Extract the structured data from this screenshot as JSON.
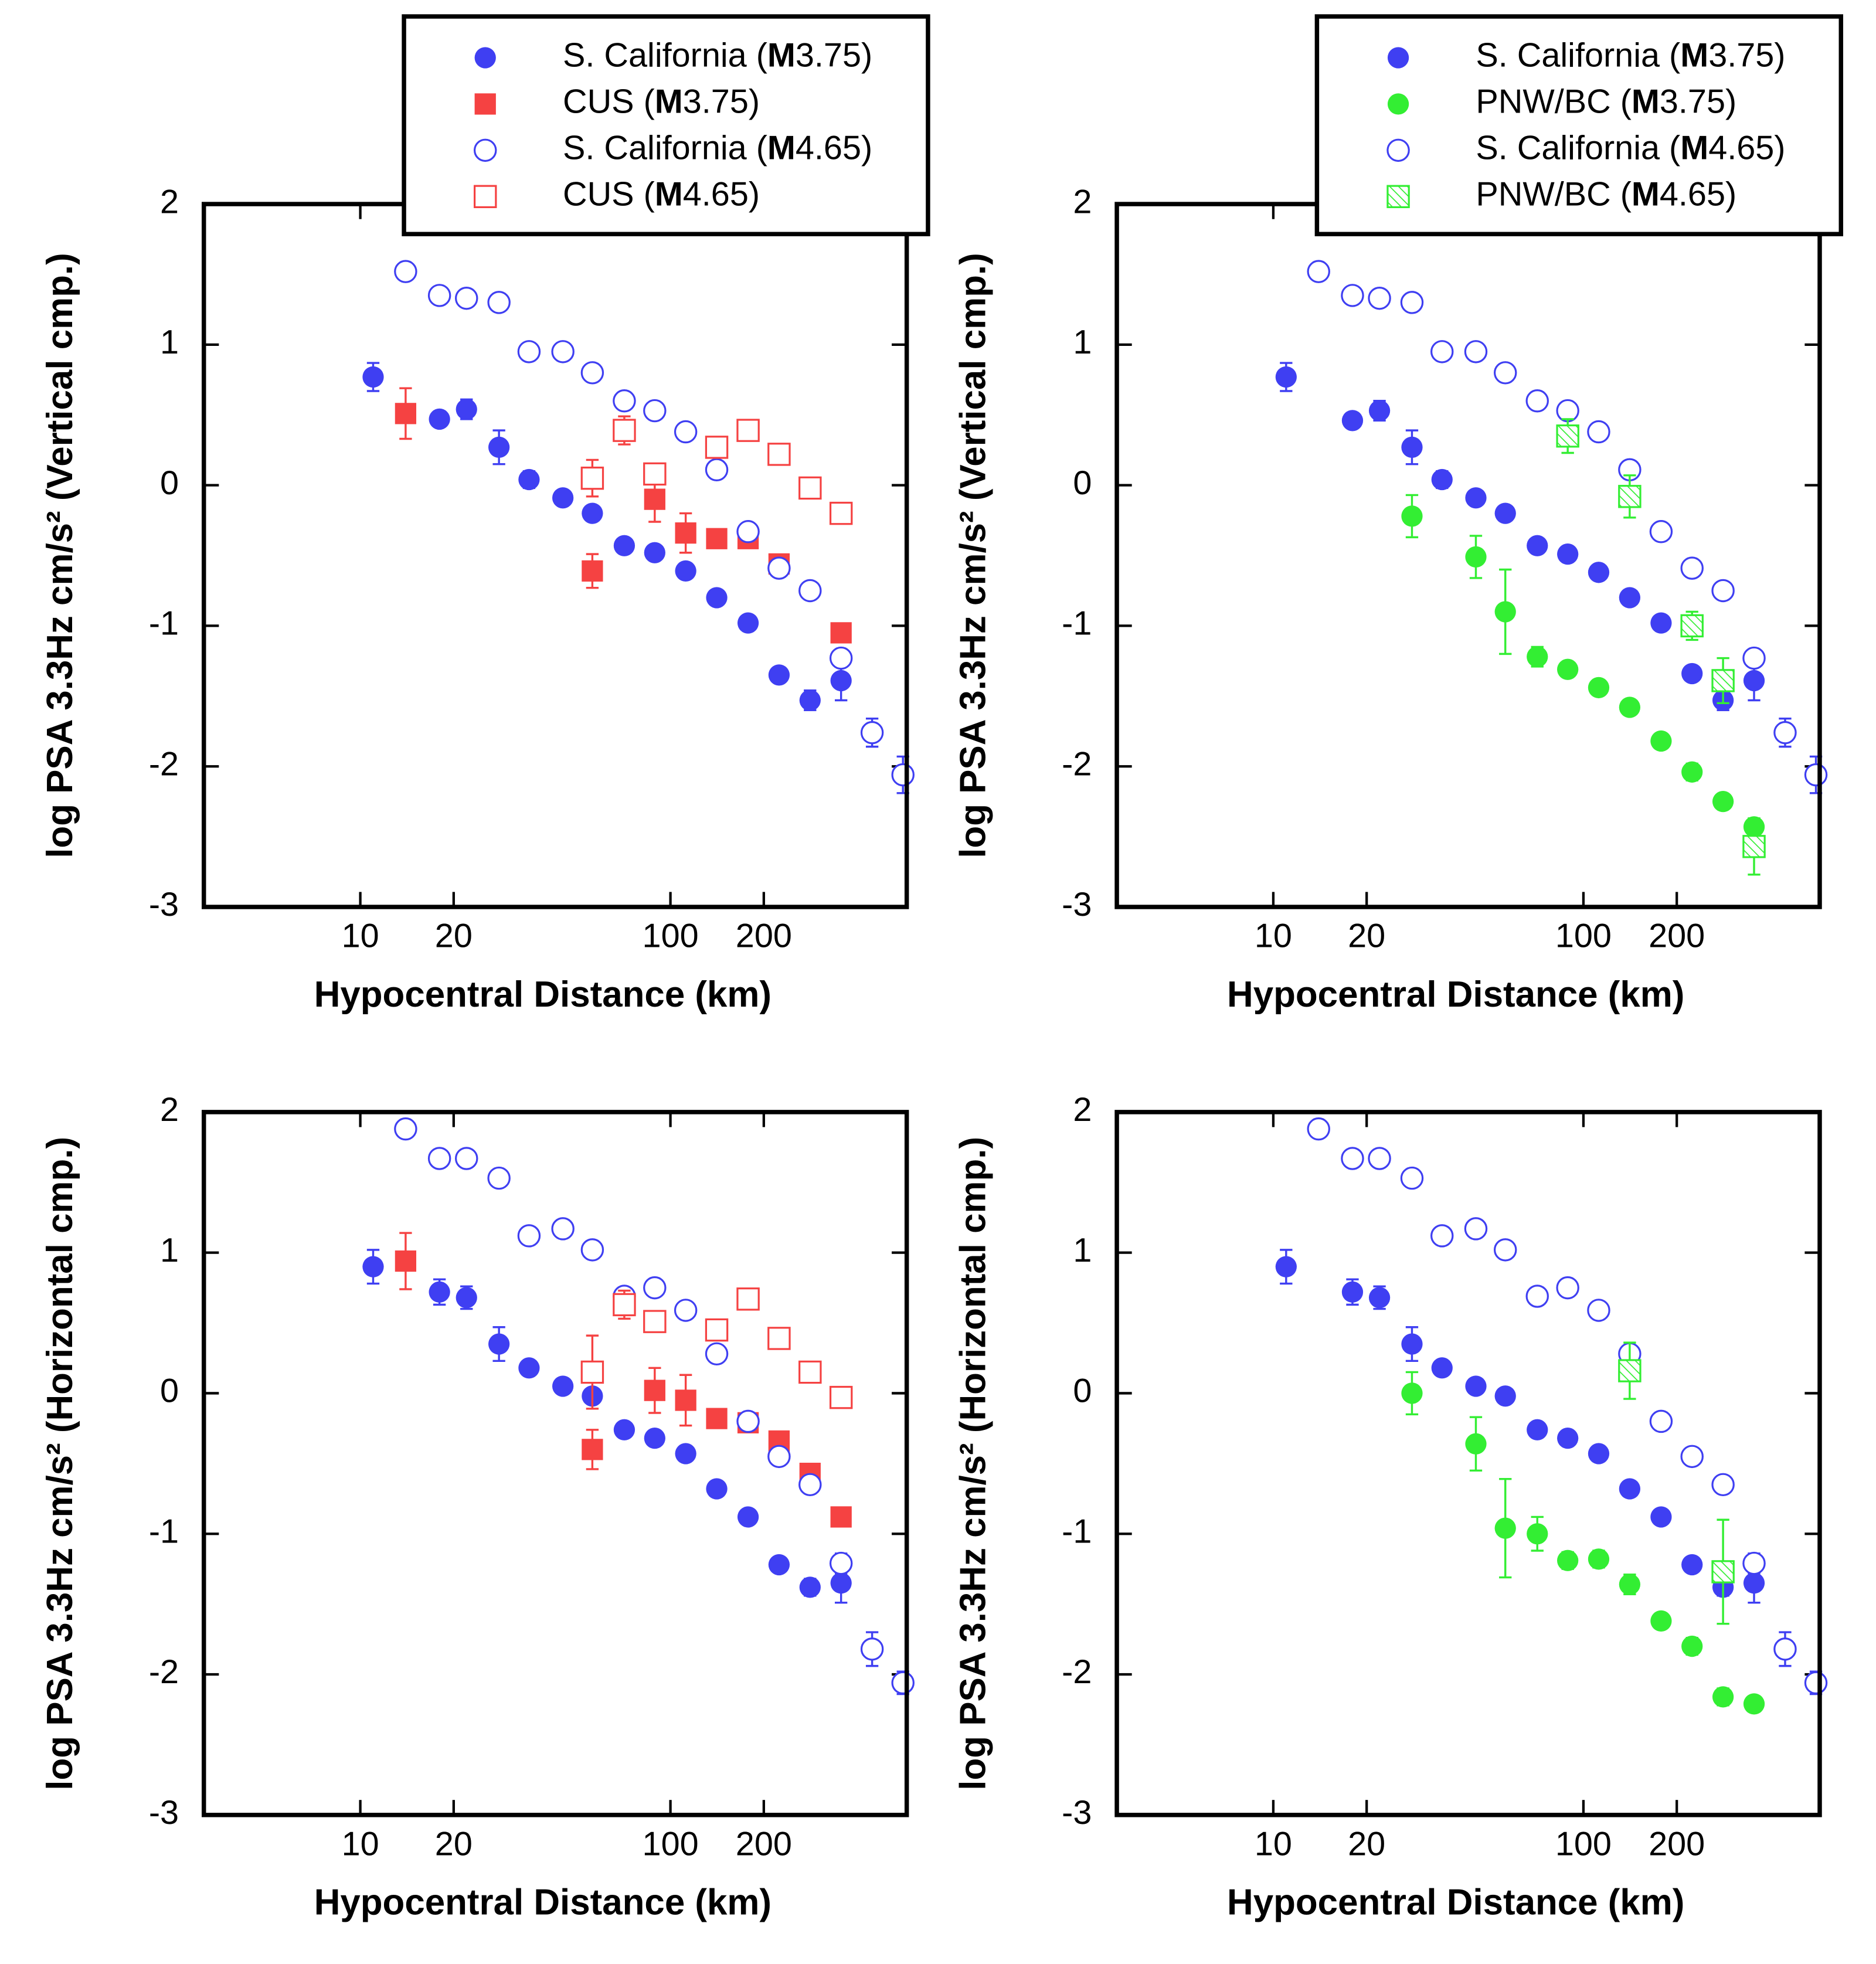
{
  "chart_data": [
    {
      "type": "scatter",
      "xscale": "log",
      "xlabel": "Hypocentral Distance (km)",
      "ylabel": "log PSA 3.3Hz cm/s² (Vertical cmp.)",
      "xlim": [
        3.13,
        578
      ],
      "ylim": [
        -3,
        2
      ],
      "xticks": [
        10,
        20,
        100,
        200
      ],
      "yticks": [
        -3,
        -2,
        -1,
        0,
        1,
        2
      ],
      "legend": "upper right",
      "series": [
        {
          "name": "S. California (M3.75)",
          "color": "#3f3ff2",
          "marker": "circle",
          "fill": "filled",
          "x": [
            11,
            18,
            22,
            28,
            35,
            45,
            56,
            71,
            89,
            112,
            141,
            178,
            224,
            282,
            355
          ],
          "values": [
            0.77,
            0.47,
            0.54,
            0.27,
            0.04,
            -0.09,
            -0.2,
            -0.43,
            -0.48,
            -0.61,
            -0.8,
            -0.98,
            -1.35,
            -1.53,
            -1.39
          ],
          "errors": [
            0.1,
            0.05,
            0.07,
            0.12,
            0.06,
            0.03,
            0.03,
            0.03,
            0.03,
            0.03,
            0.03,
            0.03,
            0.04,
            0.07,
            0.14
          ]
        },
        {
          "name": "CUS (M3.75)",
          "color": "#f54242",
          "marker": "square",
          "fill": "filled",
          "x": [
            14,
            56,
            89,
            112,
            141,
            178,
            224,
            355
          ],
          "values": [
            0.51,
            -0.61,
            -0.1,
            -0.34,
            -0.38,
            -0.38,
            -0.56,
            -1.05
          ],
          "errors": [
            0.18,
            0.12,
            0.16,
            0.14,
            0.05,
            0.04,
            0.04,
            0.04
          ]
        },
        {
          "name": "S. California (M4.65)",
          "color": "#3f3ff2",
          "marker": "circle",
          "fill": "open",
          "x": [
            14,
            18,
            22,
            28,
            35,
            45,
            56,
            71,
            89,
            112,
            141,
            178,
            224,
            282,
            355,
            447,
            562
          ],
          "values": [
            1.52,
            1.35,
            1.33,
            1.3,
            0.95,
            0.95,
            0.8,
            0.6,
            0.53,
            0.38,
            0.11,
            -0.33,
            -0.59,
            -0.75,
            -1.23,
            -1.76,
            -2.06
          ],
          "errors": [
            0.06,
            0.03,
            0.03,
            0.03,
            0.03,
            0.03,
            0.03,
            0.03,
            0.03,
            0.03,
            0.06,
            0.03,
            0.03,
            0.03,
            0.05,
            0.1,
            0.13
          ]
        },
        {
          "name": "CUS (M4.65)",
          "color": "#f54242",
          "marker": "square",
          "fill": "open",
          "x": [
            56,
            71,
            89,
            141,
            178,
            224,
            282,
            355
          ],
          "values": [
            0.05,
            0.39,
            0.08,
            0.27,
            0.39,
            0.22,
            -0.02,
            -0.2
          ],
          "errors": [
            0.13,
            0.1,
            0.05,
            0.05,
            0.04,
            0.04,
            0.04,
            0.04
          ]
        }
      ]
    },
    {
      "type": "scatter",
      "xscale": "log",
      "xlabel": "Hypocentral Distance (km)",
      "ylabel": "log PSA 3.3Hz cm/s² (Vertical cmp.)",
      "xlim": [
        3.13,
        578
      ],
      "ylim": [
        -3,
        2
      ],
      "xticks": [
        10,
        20,
        100,
        200
      ],
      "yticks": [
        -3,
        -2,
        -1,
        0,
        1,
        2
      ],
      "legend": "upper right",
      "series": [
        {
          "name": "S. California (M3.75)",
          "color": "#3f3ff2",
          "marker": "circle",
          "fill": "filled",
          "x": [
            11,
            18,
            22,
            28,
            35,
            45,
            56,
            71,
            89,
            112,
            141,
            178,
            224,
            282,
            355
          ],
          "values": [
            0.77,
            0.46,
            0.53,
            0.27,
            0.04,
            -0.09,
            -0.2,
            -0.43,
            -0.49,
            -0.62,
            -0.8,
            -0.98,
            -1.34,
            -1.53,
            -1.39
          ],
          "errors": [
            0.1,
            0.05,
            0.07,
            0.12,
            0.06,
            0.03,
            0.03,
            0.03,
            0.03,
            0.03,
            0.03,
            0.03,
            0.04,
            0.07,
            0.14
          ]
        },
        {
          "name": "PNW/BC (M3.75)",
          "color": "#33ee33",
          "marker": "circle",
          "fill": "filled",
          "x": [
            28,
            45,
            56,
            71,
            89,
            112,
            141,
            178,
            224,
            282,
            355
          ],
          "values": [
            -0.22,
            -0.51,
            -0.9,
            -1.22,
            -1.31,
            -1.44,
            -1.58,
            -1.82,
            -2.04,
            -2.25,
            -2.43
          ],
          "errors": [
            0.15,
            0.15,
            0.3,
            0.07,
            0.05,
            0.04,
            0.04,
            0.04,
            0.06,
            0.04,
            0.06
          ]
        },
        {
          "name": "S. California (M4.65)",
          "color": "#3f3ff2",
          "marker": "circle",
          "fill": "open",
          "x": [
            14,
            18,
            22,
            28,
            35,
            45,
            56,
            71,
            89,
            112,
            141,
            178,
            224,
            282,
            355,
            447,
            562
          ],
          "values": [
            1.52,
            1.35,
            1.33,
            1.3,
            0.95,
            0.95,
            0.8,
            0.6,
            0.53,
            0.38,
            0.11,
            -0.33,
            -0.59,
            -0.75,
            -1.23,
            -1.76,
            -2.06
          ],
          "errors": [
            0.06,
            0.03,
            0.03,
            0.03,
            0.03,
            0.03,
            0.03,
            0.03,
            0.03,
            0.03,
            0.06,
            0.03,
            0.03,
            0.03,
            0.05,
            0.1,
            0.13
          ]
        },
        {
          "name": "PNW/BC (M4.65)",
          "color": "#33ee33",
          "marker": "square",
          "fill": "hatched",
          "x": [
            89,
            141,
            224,
            282,
            355
          ],
          "values": [
            0.35,
            -0.08,
            -1.0,
            -1.39,
            -2.57
          ],
          "errors": [
            0.12,
            0.15,
            0.1,
            0.16,
            0.2
          ]
        }
      ]
    },
    {
      "type": "scatter",
      "xscale": "log",
      "xlabel": "Hypocentral Distance (km)",
      "ylabel": "log PSA 3.3Hz cm/s² (Horizontal cmp.)",
      "xlim": [
        3.13,
        578
      ],
      "ylim": [
        -3,
        2
      ],
      "xticks": [
        10,
        20,
        100,
        200
      ],
      "yticks": [
        -3,
        -2,
        -1,
        0,
        1,
        2
      ],
      "legend": false,
      "series": [
        {
          "color": "#3f3ff2",
          "marker": "circle",
          "fill": "filled",
          "x": [
            11,
            18,
            22,
            28,
            35,
            45,
            56,
            71,
            89,
            112,
            141,
            178,
            224,
            282,
            355
          ],
          "values": [
            0.9,
            0.72,
            0.68,
            0.35,
            0.18,
            0.05,
            -0.02,
            -0.26,
            -0.32,
            -0.43,
            -0.68,
            -0.88,
            -1.22,
            -1.38,
            -1.35
          ],
          "errors": [
            0.12,
            0.09,
            0.08,
            0.12,
            0.04,
            0.03,
            0.05,
            0.03,
            0.03,
            0.03,
            0.03,
            0.03,
            0.03,
            0.06,
            0.14
          ]
        },
        {
          "color": "#f54242",
          "marker": "square",
          "fill": "filled",
          "x": [
            14,
            56,
            89,
            112,
            141,
            178,
            224,
            282,
            355
          ],
          "values": [
            0.94,
            -0.4,
            0.02,
            -0.05,
            -0.18,
            -0.21,
            -0.34,
            -0.57,
            -0.88
          ],
          "errors": [
            0.2,
            0.14,
            0.16,
            0.18,
            0.05,
            0.06,
            0.05,
            0.05,
            0.04
          ]
        },
        {
          "color": "#3f3ff2",
          "marker": "circle",
          "fill": "open",
          "x": [
            14,
            18,
            22,
            28,
            35,
            45,
            56,
            71,
            89,
            112,
            141,
            178,
            224,
            282,
            355,
            447,
            562
          ],
          "values": [
            1.88,
            1.67,
            1.67,
            1.53,
            1.12,
            1.17,
            1.02,
            0.69,
            0.75,
            0.59,
            0.28,
            -0.2,
            -0.45,
            -0.65,
            -1.21,
            -1.82,
            -2.06
          ],
          "errors": [
            0.06,
            0.03,
            0.03,
            0.03,
            0.03,
            0.03,
            0.03,
            0.06,
            0.03,
            0.03,
            0.06,
            0.04,
            0.03,
            0.03,
            0.07,
            0.12,
            0.08
          ]
        },
        {
          "color": "#f54242",
          "marker": "square",
          "fill": "open",
          "x": [
            56,
            71,
            89,
            141,
            178,
            224,
            282,
            355
          ],
          "values": [
            0.15,
            0.63,
            0.51,
            0.45,
            0.67,
            0.39,
            0.15,
            -0.03
          ],
          "errors": [
            0.26,
            0.1,
            0.04,
            0.06,
            0.07,
            0.04,
            0.04,
            0.04
          ]
        }
      ]
    },
    {
      "type": "scatter",
      "xscale": "log",
      "xlabel": "Hypocentral Distance (km)",
      "ylabel": "log PSA 3.3Hz cm/s² (Horizontal cmp.)",
      "xlim": [
        3.13,
        578
      ],
      "ylim": [
        -3,
        2
      ],
      "xticks": [
        10,
        20,
        100,
        200
      ],
      "yticks": [
        -3,
        -2,
        -1,
        0,
        1,
        2
      ],
      "legend": false,
      "series": [
        {
          "color": "#3f3ff2",
          "marker": "circle",
          "fill": "filled",
          "x": [
            11,
            18,
            22,
            28,
            35,
            45,
            56,
            71,
            89,
            112,
            141,
            178,
            224,
            282,
            355
          ],
          "values": [
            0.9,
            0.72,
            0.68,
            0.35,
            0.18,
            0.05,
            -0.02,
            -0.26,
            -0.32,
            -0.43,
            -0.68,
            -0.88,
            -1.22,
            -1.38,
            -1.35
          ],
          "errors": [
            0.12,
            0.09,
            0.08,
            0.12,
            0.04,
            0.03,
            0.05,
            0.03,
            0.03,
            0.03,
            0.03,
            0.03,
            0.03,
            0.06,
            0.14
          ]
        },
        {
          "color": "#33ee33",
          "marker": "circle",
          "fill": "filled",
          "x": [
            28,
            45,
            56,
            71,
            89,
            112,
            141,
            178,
            224,
            282,
            355
          ],
          "values": [
            0,
            -0.36,
            -0.96,
            -1.0,
            -1.19,
            -1.18,
            -1.36,
            -1.62,
            -1.8,
            -2.16,
            -2.21
          ],
          "errors": [
            0.15,
            0.19,
            0.35,
            0.12,
            0.06,
            0.06,
            0.07,
            0.04,
            0.06,
            0.06,
            0.05
          ]
        },
        {
          "color": "#3f3ff2",
          "marker": "circle",
          "fill": "open",
          "x": [
            14,
            18,
            22,
            28,
            35,
            45,
            56,
            71,
            89,
            112,
            141,
            178,
            224,
            282,
            355,
            447,
            562
          ],
          "values": [
            1.88,
            1.67,
            1.67,
            1.53,
            1.12,
            1.17,
            1.02,
            0.69,
            0.75,
            0.59,
            0.28,
            -0.2,
            -0.45,
            -0.65,
            -1.21,
            -1.82,
            -2.06
          ],
          "errors": [
            0.06,
            0.03,
            0.03,
            0.03,
            0.03,
            0.03,
            0.03,
            0.06,
            0.03,
            0.03,
            0.06,
            0.04,
            0.03,
            0.03,
            0.07,
            0.12,
            0.08
          ]
        },
        {
          "color": "#33ee33",
          "marker": "square",
          "fill": "hatched",
          "x": [
            141,
            282
          ],
          "values": [
            0.16,
            -1.27
          ],
          "errors": [
            0.2,
            0.37
          ]
        }
      ]
    }
  ]
}
